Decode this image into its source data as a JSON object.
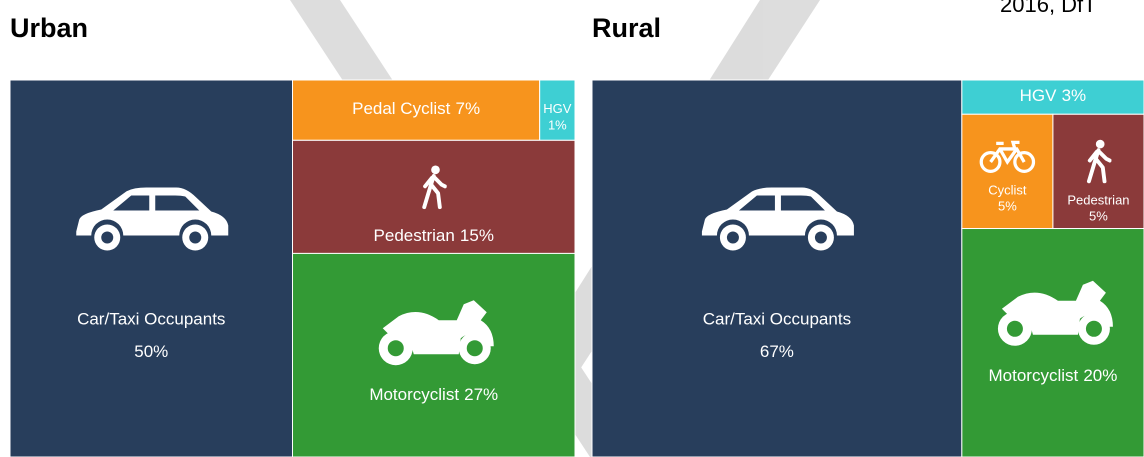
{
  "chart_data": [
    {
      "type": "treemap",
      "title": "Urban",
      "categories": [
        "Car/Taxi Occupants",
        "Pedal Cyclist",
        "HGV",
        "Pedestrian",
        "Motorcyclist"
      ],
      "values": [
        50,
        7,
        1,
        15,
        27
      ],
      "value_labels": [
        "50%",
        "7%",
        "1%",
        "15%",
        "27%"
      ],
      "colors": [
        "#283e5c",
        "#f7941d",
        "#3ecfd3",
        "#8b3a3a",
        "#339a35"
      ]
    },
    {
      "type": "treemap",
      "title": "Rural",
      "source": "2016, DfT",
      "categories": [
        "Car/Taxi Occupants",
        "HGV",
        "Cyclist",
        "Pedestrian",
        "Motorcyclist"
      ],
      "values": [
        67,
        3,
        5,
        5,
        20
      ],
      "value_labels": [
        "67%",
        "3%",
        "5%",
        "5%",
        "20%"
      ],
      "colors": [
        "#283e5c",
        "#3ecfd3",
        "#f7941d",
        "#8b3a3a",
        "#339a35"
      ]
    }
  ]
}
